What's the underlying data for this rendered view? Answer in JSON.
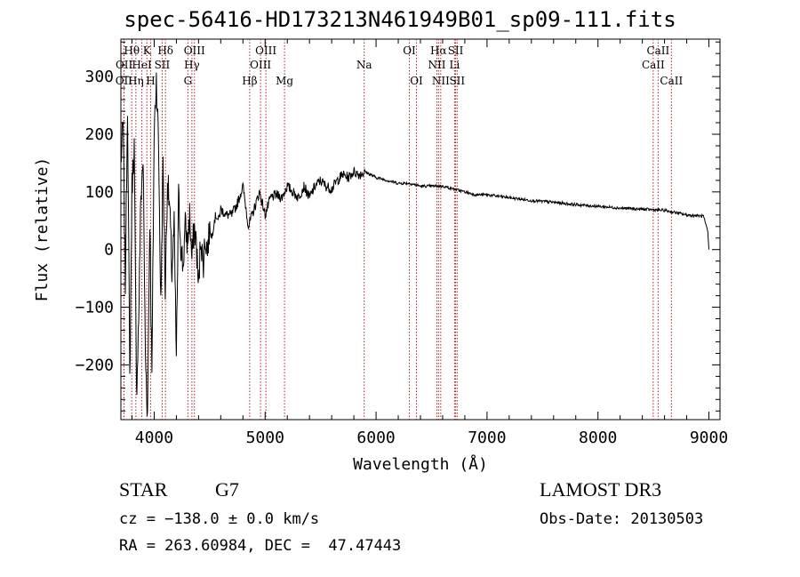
{
  "title": "spec-56416-HD173213N461949B01_sp09-111.fits",
  "info": {
    "object_class": "STAR",
    "subclass": "G7",
    "survey": "LAMOST DR3",
    "redshift": "cz = −138.0 ± 0.0 km/s",
    "obs_date": "Obs-Date: 20130503",
    "coords": "RA = 263.60984, DEC =  47.47443"
  },
  "colors": {
    "spectrum": "#000000",
    "line_markers": "#b22222",
    "axes": "#000000"
  },
  "chart_data": {
    "type": "line",
    "title": "spec-56416-HD173213N461949B01_sp09-111.fits",
    "xlabel": "Wavelength (Å)",
    "ylabel": "Flux (relative)",
    "xlim": [
      3700,
      9100
    ],
    "ylim": [
      -295,
      365
    ],
    "xticks": [
      4000,
      5000,
      6000,
      7000,
      8000,
      9000
    ],
    "yticks": [
      -200,
      -100,
      0,
      100,
      200,
      300
    ],
    "spectral_lines": [
      {
        "label": "OII",
        "wavelength": 3727,
        "row": 2
      },
      {
        "label": "OII",
        "wavelength": 3729,
        "row": 1
      },
      {
        "label": "Hθ",
        "wavelength": 3798,
        "row": 0
      },
      {
        "label": "Hη",
        "wavelength": 3835,
        "row": 2
      },
      {
        "label": "HeI",
        "wavelength": 3889,
        "row": 1
      },
      {
        "label": "K",
        "wavelength": 3934,
        "row": 0
      },
      {
        "label": "H",
        "wavelength": 3968,
        "row": 2
      },
      {
        "label": "SII",
        "wavelength": 4072,
        "row": 1
      },
      {
        "label": "Hδ",
        "wavelength": 4102,
        "row": 0
      },
      {
        "label": "Hγ",
        "wavelength": 4340,
        "row": 1
      },
      {
        "label": "G",
        "wavelength": 4304,
        "row": 2
      },
      {
        "label": "OIII",
        "wavelength": 4363,
        "row": 0
      },
      {
        "label": "Hβ",
        "wavelength": 4861,
        "row": 2
      },
      {
        "label": "OIII",
        "wavelength": 4959,
        "row": 1
      },
      {
        "label": "OIII",
        "wavelength": 5007,
        "row": 0
      },
      {
        "label": "Mg",
        "wavelength": 5175,
        "row": 2
      },
      {
        "label": "Na",
        "wavelength": 5893,
        "row": 1
      },
      {
        "label": "OI",
        "wavelength": 6300,
        "row": 0
      },
      {
        "label": "OI",
        "wavelength": 6364,
        "row": 2
      },
      {
        "label": "NII",
        "wavelength": 6548,
        "row": 1
      },
      {
        "label": "Hα",
        "wavelength": 6563,
        "row": 0
      },
      {
        "label": "NII",
        "wavelength": 6583,
        "row": 2
      },
      {
        "label": "Li",
        "wavelength": 6708,
        "row": 1
      },
      {
        "label": "SII",
        "wavelength": 6717,
        "row": 0
      },
      {
        "label": "SII",
        "wavelength": 6731,
        "row": 2
      },
      {
        "label": "CaII",
        "wavelength": 8498,
        "row": 1
      },
      {
        "label": "CaII",
        "wavelength": 8542,
        "row": 0
      },
      {
        "label": "CaII",
        "wavelength": 8662,
        "row": 2
      }
    ],
    "series": [
      {
        "name": "spectrum",
        "x": [
          3700,
          3720,
          3740,
          3760,
          3780,
          3800,
          3820,
          3840,
          3860,
          3880,
          3900,
          3920,
          3940,
          3960,
          3980,
          4000,
          4020,
          4040,
          4060,
          4080,
          4100,
          4120,
          4140,
          4160,
          4180,
          4200,
          4220,
          4240,
          4260,
          4280,
          4300,
          4320,
          4340,
          4360,
          4380,
          4400,
          4420,
          4440,
          4460,
          4480,
          4500,
          4520,
          4540,
          4560,
          4580,
          4600,
          4650,
          4700,
          4750,
          4800,
          4850,
          4900,
          4950,
          5000,
          5050,
          5100,
          5150,
          5200,
          5250,
          5300,
          5350,
          5400,
          5450,
          5500,
          5550,
          5600,
          5650,
          5700,
          5750,
          5800,
          5850,
          5900,
          5950,
          6000,
          6100,
          6200,
          6300,
          6400,
          6500,
          6600,
          6700,
          6800,
          6900,
          7000,
          7200,
          7400,
          7600,
          7800,
          8000,
          8200,
          8400,
          8600,
          8800,
          8950,
          8990,
          9000
        ],
        "y": [
          150,
          220,
          -60,
          260,
          -230,
          110,
          180,
          -250,
          -120,
          90,
          160,
          -180,
          -285,
          60,
          -220,
          200,
          300,
          180,
          -100,
          150,
          -70,
          120,
          70,
          -40,
          40,
          -190,
          90,
          10,
          -30,
          40,
          10,
          60,
          -20,
          40,
          10,
          -70,
          30,
          -30,
          20,
          0,
          40,
          20,
          50,
          60,
          50,
          70,
          60,
          60,
          80,
          110,
          40,
          70,
          100,
          60,
          90,
          95,
          90,
          110,
          100,
          90,
          110,
          90,
          110,
          120,
          110,
          105,
          120,
          130,
          125,
          135,
          130,
          135,
          130,
          125,
          120,
          115,
          115,
          110,
          110,
          110,
          105,
          100,
          95,
          95,
          90,
          85,
          82,
          78,
          75,
          72,
          70,
          68,
          60,
          58,
          30,
          0
        ]
      }
    ]
  }
}
